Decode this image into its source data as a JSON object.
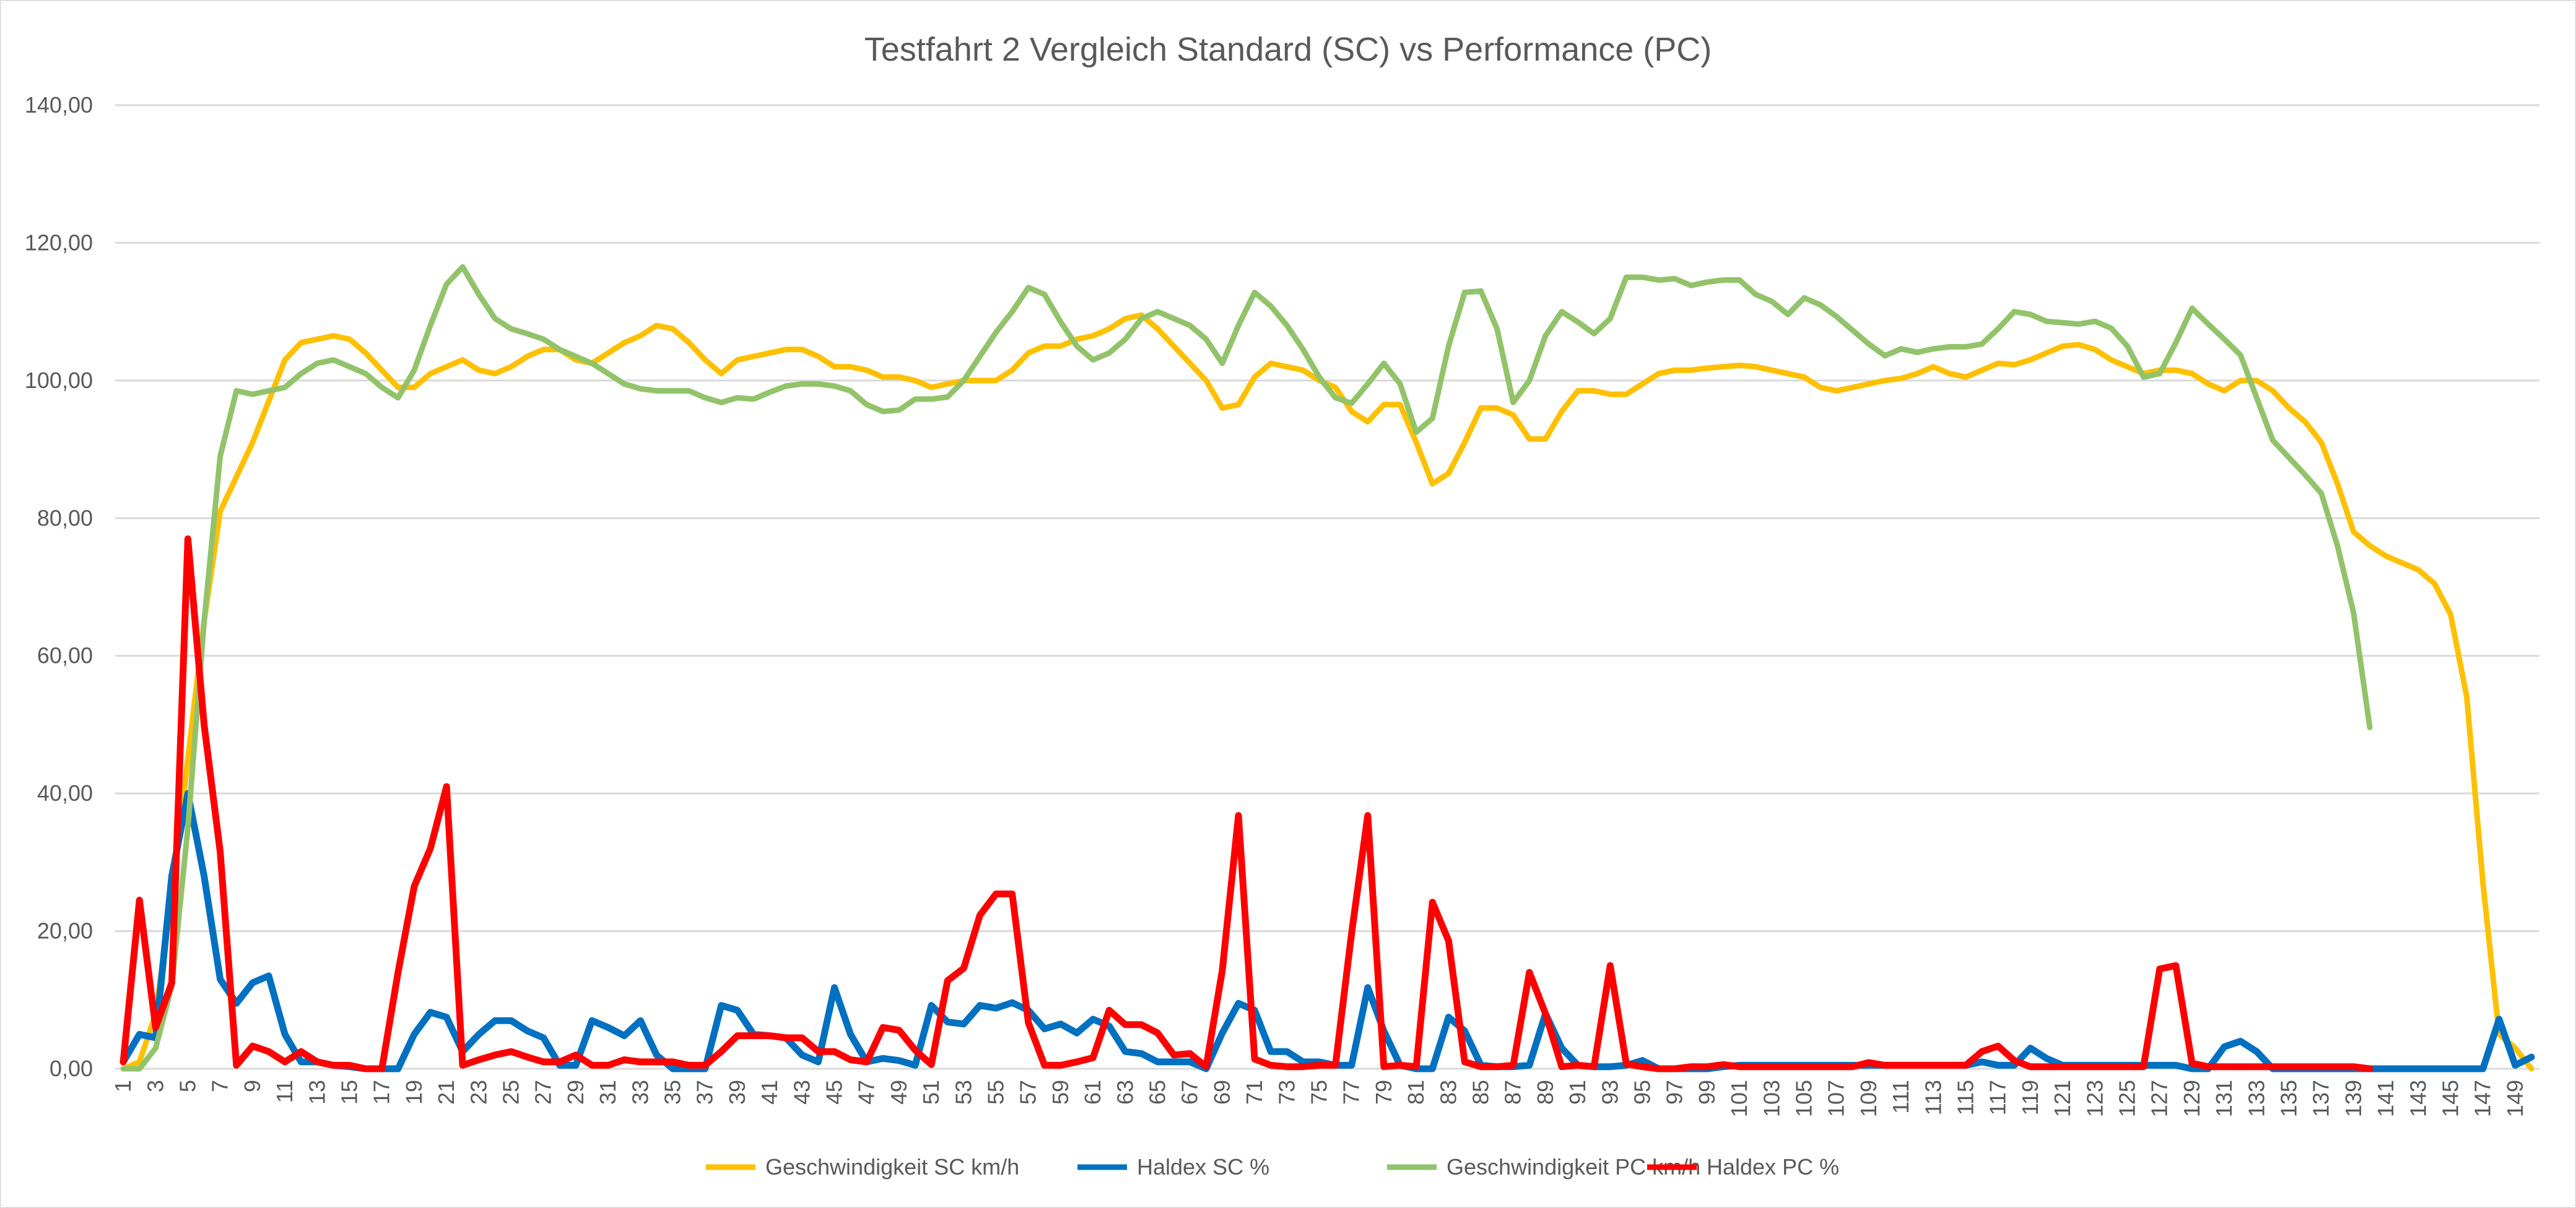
{
  "chart_data": {
    "type": "line",
    "title": "Testfahrt 2 Vergleich Standard (SC) vs Performance (PC)",
    "xlabel": "",
    "ylabel": "",
    "ylim": [
      0,
      140
    ],
    "y_ticks": [
      "0,00",
      "20,00",
      "40,00",
      "60,00",
      "80,00",
      "100,00",
      "120,00",
      "140,00"
    ],
    "grid": true,
    "legend_position": "bottom",
    "x_start": 1,
    "x_end": 150,
    "series": [
      {
        "name": "Geschwindigkeit SC km/h",
        "color": "#FFC000",
        "values": [
          0,
          1,
          8,
          25,
          45,
          65,
          81,
          86,
          91,
          97,
          103,
          105.5,
          106,
          106.5,
          106,
          104,
          101.5,
          99,
          99,
          101,
          102,
          103,
          101.5,
          101,
          102,
          103.5,
          104.5,
          104.5,
          103,
          102.5,
          104,
          105.5,
          106.5,
          108,
          107.5,
          105.5,
          103,
          101,
          103,
          103.5,
          104,
          104.5,
          104.5,
          103.5,
          102,
          102,
          101.5,
          100.5,
          100.5,
          100,
          99,
          99.5,
          100,
          100,
          100,
          101.5,
          104,
          105,
          105,
          106,
          106.5,
          107.5,
          109,
          109.5,
          107.5,
          105,
          102.5,
          100,
          96,
          96.5,
          100.5,
          102.5,
          102,
          101.5,
          100,
          99,
          95.5,
          94,
          96.5,
          96.5,
          91,
          85,
          86.5,
          91,
          96,
          96,
          95,
          91.5,
          91.5,
          95.5,
          98.5,
          98.5,
          98,
          98,
          99.5,
          101,
          101.5,
          101.5,
          101.8,
          102,
          102.2,
          102,
          101.5,
          101,
          100.5,
          99,
          98.5,
          99,
          99.5,
          100,
          100.3,
          101,
          102,
          101,
          100.5,
          101.5,
          102.5,
          102.3,
          103,
          104,
          105,
          105.2,
          104.5,
          103,
          102,
          101,
          101.5,
          101.5,
          101,
          99.5,
          98.5,
          100,
          100,
          98.5,
          96,
          94,
          91,
          85,
          78,
          76,
          74.5,
          73.5,
          72.5,
          70.5,
          66,
          54,
          27,
          5,
          3,
          0
        ]
      },
      {
        "name": "Haldex SC %",
        "color": "#0070C0",
        "values": [
          1,
          5,
          4.5,
          28,
          40,
          28,
          13,
          9.5,
          12.5,
          13.5,
          5,
          1,
          1,
          0.5,
          0.3,
          0,
          0,
          0,
          5,
          8.2,
          7.5,
          2.5,
          5,
          7,
          7,
          5.5,
          4.5,
          0.5,
          0.5,
          7,
          6,
          4.8,
          7,
          2,
          0,
          0,
          0,
          9.2,
          8.5,
          5,
          4.8,
          4.5,
          2,
          1,
          11.8,
          5,
          1,
          1.5,
          1.2,
          0.5,
          9.2,
          6.8,
          6.5,
          9.2,
          8.8,
          9.6,
          8.5,
          5.8,
          6.5,
          5.2,
          7.2,
          6.2,
          2.5,
          2.2,
          1,
          1,
          1,
          0,
          5.2,
          9.5,
          8.5,
          2.5,
          2.5,
          1,
          1,
          0.5,
          0.5,
          11.8,
          5.5,
          0.5,
          0,
          0,
          7.5,
          5.5,
          0.5,
          0.3,
          0.3,
          0.5,
          8,
          3,
          0.5,
          0.3,
          0.3,
          0.5,
          1.2,
          0,
          0,
          0,
          0,
          0.3,
          0.5,
          0.5,
          0.5,
          0.5,
          0.5,
          0.5,
          0.5,
          0.5,
          0.5,
          0.5,
          0.5,
          0.5,
          0.5,
          0.5,
          0.5,
          1,
          0.5,
          0.5,
          3,
          1.5,
          0.5,
          0.5,
          0.5,
          0.5,
          0.5,
          0.5,
          0.5,
          0.5,
          0,
          0,
          3.2,
          4,
          2.5,
          0,
          0,
          0,
          0,
          0,
          0,
          0,
          0,
          0,
          0,
          0,
          0,
          0,
          0,
          7.2,
          0.5,
          1.7
        ]
      },
      {
        "name": "Geschwindigkeit PC km/h",
        "color": "#92C36A",
        "values": [
          0,
          0,
          3,
          12,
          35,
          65,
          89,
          98.5,
          98,
          98.5,
          99,
          101,
          102.5,
          103,
          102,
          101,
          99,
          97.5,
          101.5,
          108,
          114,
          116.5,
          112.5,
          109,
          107.5,
          106.8,
          106,
          104.5,
          103.5,
          102.5,
          101,
          99.5,
          98.8,
          98.5,
          98.5,
          98.5,
          97.5,
          96.8,
          97.5,
          97.3,
          98.3,
          99.2,
          99.5,
          99.5,
          99.2,
          98.5,
          96.5,
          95.5,
          95.7,
          97.3,
          97.3,
          97.6,
          100,
          103.5,
          107,
          110,
          113.5,
          112.5,
          108.5,
          105,
          103,
          104,
          106,
          109,
          110,
          109,
          108,
          106,
          102.5,
          108,
          112.8,
          110.8,
          108,
          104.5,
          100.5,
          97.5,
          96.7,
          99.5,
          102.5,
          99.5,
          92.5,
          94.5,
          105,
          112.8,
          113,
          107.5,
          96.8,
          100,
          106.5,
          110,
          108.5,
          106.8,
          109,
          115,
          115,
          114.6,
          114.8,
          113.8,
          114.3,
          114.6,
          114.6,
          112.5,
          111.5,
          109.6,
          112,
          111,
          109.3,
          107.3,
          105.3,
          103.6,
          104.6,
          104.1,
          104.6,
          104.9,
          104.9,
          105.3,
          107.5,
          110,
          109.6,
          108.6,
          108.4,
          108.2,
          108.6,
          107.6,
          105,
          100.5,
          101,
          105.5,
          110.5,
          108.2,
          106,
          103.7,
          97.5,
          91.3,
          88.8,
          86.3,
          83.6,
          76,
          66.2,
          49.6,
          null,
          null,
          null,
          null,
          null,
          null,
          null,
          null,
          null,
          null
        ]
      },
      {
        "name": "Haldex PC %",
        "color": "#FF0000",
        "values": [
          1,
          24.5,
          6,
          12.5,
          77,
          50,
          31.5,
          0.5,
          3.3,
          2.5,
          1,
          2.5,
          1,
          0.5,
          0.5,
          0,
          0,
          14,
          26.5,
          32,
          41,
          0.5,
          1.3,
          2,
          2.5,
          1.7,
          1,
          1,
          2,
          0.5,
          0.5,
          1.3,
          1,
          1,
          1,
          0.5,
          0.5,
          2.5,
          4.8,
          4.8,
          4.8,
          4.5,
          4.5,
          2.5,
          2.5,
          1.3,
          1,
          6,
          5.6,
          2.7,
          0.6,
          12.8,
          14.6,
          22.3,
          25.4,
          25.4,
          6.7,
          0.5,
          0.5,
          1,
          1.6,
          8.5,
          6.4,
          6.4,
          5.2,
          2,
          2.2,
          0.3,
          14.3,
          36.8,
          1.4,
          0.5,
          0.3,
          0.3,
          0.5,
          0.5,
          19.7,
          36.8,
          0.3,
          0.5,
          0.3,
          24.2,
          18.6,
          1,
          0.3,
          0.3,
          0.5,
          14,
          8,
          0.3,
          0.5,
          0.3,
          15,
          0.7,
          0.3,
          0,
          0,
          0.3,
          0.3,
          0.6,
          0.3,
          0.3,
          0.3,
          0.3,
          0.3,
          0.3,
          0.3,
          0.3,
          0.9,
          0.5,
          0.5,
          0.5,
          0.5,
          0.5,
          0.5,
          2.5,
          3.3,
          1.2,
          0.3,
          0.3,
          0.3,
          0.3,
          0.3,
          0.3,
          0.3,
          0.3,
          14.5,
          15,
          0.8,
          0.3,
          0.3,
          0.3,
          0.3,
          0.3,
          0.3,
          0.3,
          0.3,
          0.3,
          0.3,
          0,
          null,
          null,
          null,
          null,
          null,
          null,
          null,
          null,
          null,
          null
        ]
      }
    ]
  }
}
